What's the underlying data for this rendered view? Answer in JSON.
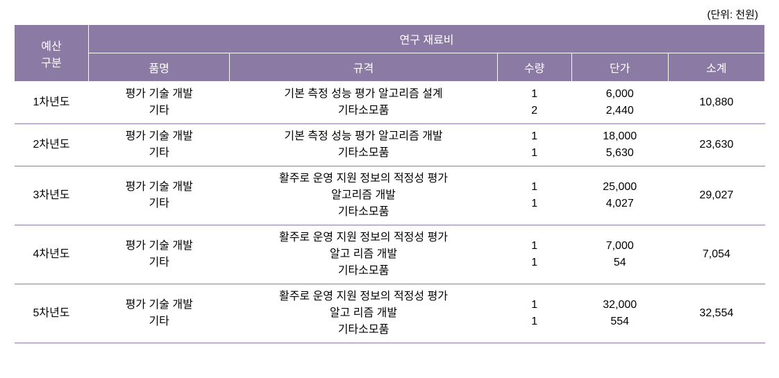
{
  "unit_label": "(단위: 천원)",
  "header": {
    "budget_category": "예산\n구분",
    "research_materials": "연구 재료비",
    "item_name": "품명",
    "specification": "규격",
    "quantity": "수량",
    "unit_price": "단가",
    "subtotal": "소계"
  },
  "rows": [
    {
      "year": "1차년도",
      "item": "평가 기술 개발\n기타",
      "spec": "기본 측정 성능 평가 알고리즘 설계\n기타소모품",
      "qty": "1\n2",
      "price": "6,000\n2,440",
      "subtotal": "10,880"
    },
    {
      "year": "2차년도",
      "item": "평가 기술 개발\n기타",
      "spec": "기본 측정 성능 평가 알고리즘 개발\n기타소모품",
      "qty": "1\n1",
      "price": "18,000\n5,630",
      "subtotal": "23,630"
    },
    {
      "year": "3차년도",
      "item": "평가 기술 개발\n기타",
      "spec": "활주로 운영 지원 정보의 적정성 평가\n알고리즘 개발\n기타소모품",
      "qty": "1\n1",
      "price": "25,000\n4,027",
      "subtotal": "29,027"
    },
    {
      "year": "4차년도",
      "item": "평가 기술 개발\n기타",
      "spec": "활주로 운영 지원 정보의 적정성 평가\n알고 리즘 개발\n기타소모품",
      "qty": "1\n1",
      "price": "7,000\n54",
      "subtotal": "7,054"
    },
    {
      "year": "5차년도",
      "item": "평가 기술 개발\n기타",
      "spec": "활주로 운영 지원 정보의 적정성 평가\n알고 리즘 개발\n기타소모품",
      "qty": "1\n1",
      "price": "32,000\n554",
      "subtotal": "32,554"
    }
  ],
  "colors": {
    "header_bg": "#8b7ba4",
    "header_text": "#ffffff",
    "border": "#8b7ba4",
    "body_text": "#000000",
    "background": "#ffffff"
  },
  "typography": {
    "font_family": "Malgun Gothic",
    "header_fontsize": 16,
    "body_fontsize": 16,
    "unit_fontsize": 15
  }
}
